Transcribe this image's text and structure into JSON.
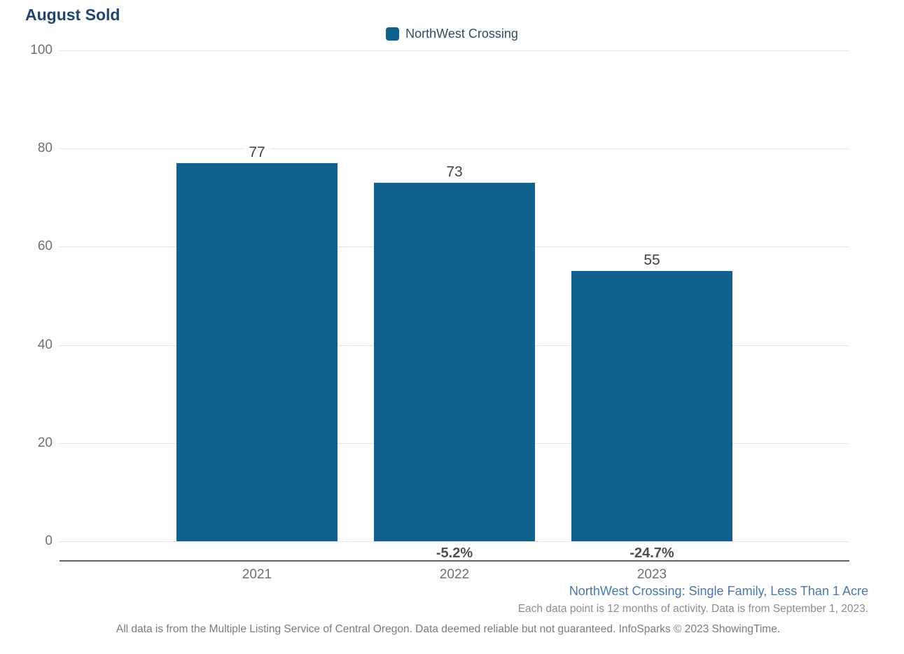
{
  "title": "August Sold",
  "legend": {
    "label": "NorthWest Crossing",
    "swatch_color": "#11618F"
  },
  "chart_data": {
    "type": "bar",
    "title": "August Sold",
    "categories": [
      "2021",
      "2022",
      "2023"
    ],
    "series": [
      {
        "name": "NorthWest Crossing",
        "values": [
          77,
          73,
          55
        ],
        "color": "#11618F"
      }
    ],
    "value_labels": [
      "77",
      "73",
      "55"
    ],
    "pct_change_labels": [
      "",
      "-5.2%",
      "-24.7%"
    ],
    "xlabel": "",
    "ylabel": "",
    "ylim": [
      0,
      100
    ],
    "yticks": [
      0,
      20,
      40,
      60,
      80,
      100
    ],
    "grid": "horizontal",
    "legend_position": "top-center"
  },
  "footnotes": {
    "series_description": "NorthWest Crossing: Single Family, Less Than 1 Acre",
    "data_note": "Each data point is 12 months of activity. Data is from September 1, 2023.",
    "disclaimer": "All data is from the Multiple Listing Service of Central Oregon. Data deemed reliable but not guaranteed. InfoSparks © 2023 ShowingTime."
  },
  "colors": {
    "bar": "#11618F",
    "title_text": "#214669",
    "legend_text": "#2C4E6C",
    "series_description_text": "#4878A8",
    "gridline": "#e3e3e3",
    "axis_line": "#5f5f5f",
    "tick_text": "#707070",
    "value_text": "#404040",
    "pct_text": "#4f4f4f"
  }
}
